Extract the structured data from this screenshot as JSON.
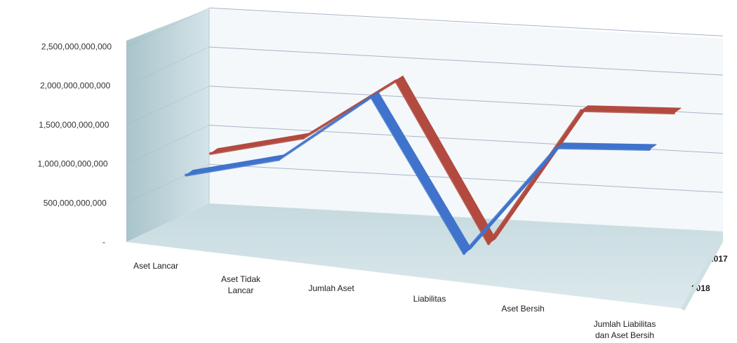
{
  "chart_data": {
    "type": "line",
    "style": "3d-line",
    "title": "",
    "xlabel": "",
    "ylabel": "",
    "categories": [
      "Aset Lancar",
      "Aset Tidak Lancar",
      "Jumlah Aset",
      "Liabilitas",
      "Aset Bersih",
      "Jumlah Liabilitas dan Aset Bersih"
    ],
    "ylim": [
      0,
      2500000000000
    ],
    "yticks": [
      0,
      500000000000,
      1000000000000,
      1500000000000,
      2000000000000,
      2500000000000
    ],
    "ytick_labels": [
      "-",
      "500,000,000,000",
      "1,000,000,000,000",
      "1,500,000,000,000",
      "2,000,000,000,000",
      "2,500,000,000,000"
    ],
    "series": [
      {
        "name": "2017",
        "color": "#b24a3f",
        "values": [
          1050000000000,
          1300000000000,
          2080000000000,
          50000000000,
          1800000000000,
          1820000000000
        ]
      },
      {
        "name": "2018",
        "color": "#3f73cc",
        "values": [
          900000000000,
          1150000000000,
          2000000000000,
          50000000000,
          1450000000000,
          1480000000000
        ]
      }
    ],
    "grid": true,
    "legend": "depth-axis-right"
  }
}
